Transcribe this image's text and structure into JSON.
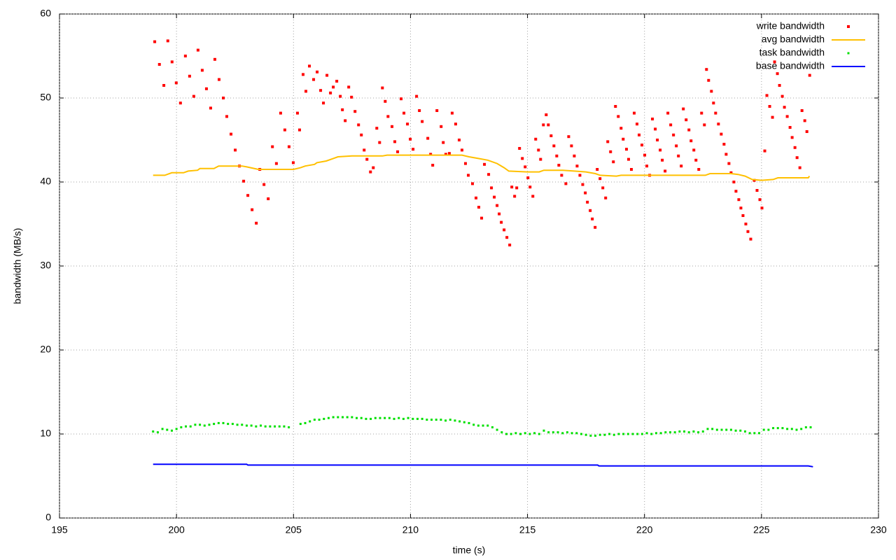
{
  "chart_data": {
    "type": "scatter",
    "xlabel": "time (s)",
    "ylabel": "bandwidth (MB/s)",
    "xlim": [
      195,
      230
    ],
    "xticks": [
      195,
      200,
      205,
      210,
      215,
      220,
      225,
      230
    ],
    "ylim": [
      0,
      60
    ],
    "yticks": [
      0,
      10,
      20,
      30,
      40,
      50,
      60
    ],
    "grid": true,
    "legend": "top-right",
    "series": [
      {
        "name": "write bandwidth",
        "color": "#ff0000",
        "mode": "points",
        "x": [
          199.07,
          199.27,
          199.46,
          199.63,
          199.81,
          199.99,
          200.17,
          200.38,
          200.56,
          200.74,
          200.92,
          201.1,
          201.28,
          201.46,
          201.64,
          201.82,
          202.0,
          202.15,
          202.33,
          202.51,
          202.69,
          202.87,
          203.05,
          203.23,
          203.41,
          203.56,
          203.74,
          203.92,
          204.1,
          204.27,
          204.45,
          204.63,
          204.81,
          204.99,
          205.17,
          205.26,
          205.41,
          205.53,
          205.68,
          205.86,
          206.01,
          206.16,
          206.28,
          206.43,
          206.58,
          206.7,
          206.85,
          207.0,
          207.09,
          207.21,
          207.36,
          207.48,
          207.63,
          207.78,
          207.9,
          208.02,
          208.14,
          208.29,
          208.41,
          208.56,
          208.68,
          208.8,
          208.92,
          209.04,
          209.21,
          209.33,
          209.45,
          209.6,
          209.72,
          209.87,
          209.99,
          210.11,
          210.26,
          210.38,
          210.5,
          210.74,
          210.86,
          210.95,
          211.13,
          211.31,
          211.4,
          211.51,
          211.66,
          211.78,
          211.93,
          212.08,
          212.2,
          212.35,
          212.47,
          212.65,
          212.8,
          212.92,
          213.04,
          213.16,
          213.34,
          213.46,
          213.58,
          213.7,
          213.79,
          213.88,
          214.0,
          214.12,
          214.24,
          214.33,
          214.45,
          214.54,
          214.66,
          214.78,
          214.9,
          215.02,
          215.11,
          215.23,
          215.35,
          215.47,
          215.56,
          215.68,
          215.8,
          215.89,
          216.01,
          216.13,
          216.25,
          216.34,
          216.46,
          216.64,
          216.76,
          216.88,
          217.0,
          217.12,
          217.24,
          217.36,
          217.47,
          217.56,
          217.68,
          217.77,
          217.89,
          217.98,
          218.1,
          218.22,
          218.34,
          218.43,
          218.55,
          218.67,
          218.76,
          218.88,
          219.0,
          219.09,
          219.23,
          219.32,
          219.44,
          219.56,
          219.68,
          219.77,
          219.89,
          220.01,
          220.1,
          220.22,
          220.34,
          220.46,
          220.55,
          220.67,
          220.76,
          220.88,
          221.0,
          221.12,
          221.24,
          221.36,
          221.45,
          221.57,
          221.66,
          221.78,
          221.9,
          221.99,
          222.11,
          222.2,
          222.32,
          222.44,
          222.56,
          222.65,
          222.74,
          222.86,
          222.95,
          223.04,
          223.16,
          223.28,
          223.4,
          223.49,
          223.61,
          223.7,
          223.82,
          223.91,
          224.03,
          224.12,
          224.21,
          224.33,
          224.42,
          224.54,
          224.69,
          224.81,
          224.93,
          225.02,
          225.14,
          225.23,
          225.35,
          225.47,
          225.56,
          225.68,
          225.77,
          225.89,
          225.98,
          226.1,
          226.22,
          226.31,
          226.43,
          226.52,
          226.64,
          226.73,
          226.85,
          226.94,
          227.06
        ],
        "values": [
          56.7,
          54.0,
          51.5,
          56.8,
          54.3,
          51.8,
          49.4,
          55.0,
          52.6,
          50.2,
          55.7,
          53.3,
          51.1,
          48.8,
          54.6,
          52.2,
          50.0,
          47.8,
          45.7,
          43.8,
          41.9,
          40.1,
          38.4,
          36.7,
          35.1,
          41.5,
          39.7,
          38.0,
          44.2,
          42.2,
          48.2,
          46.2,
          44.2,
          42.3,
          48.2,
          46.2,
          52.8,
          50.8,
          53.8,
          52.2,
          53.1,
          50.9,
          49.4,
          52.7,
          50.6,
          51.3,
          52.0,
          50.2,
          48.6,
          47.3,
          51.3,
          50.1,
          48.4,
          46.8,
          45.6,
          43.8,
          42.7,
          41.2,
          41.7,
          46.4,
          44.7,
          51.2,
          49.6,
          47.8,
          46.6,
          44.8,
          43.6,
          49.9,
          48.2,
          46.9,
          45.1,
          43.9,
          50.2,
          48.5,
          47.2,
          45.2,
          43.3,
          42.0,
          48.5,
          46.6,
          44.7,
          43.3,
          43.4,
          48.2,
          46.9,
          45.0,
          43.8,
          42.2,
          40.8,
          39.8,
          38.1,
          37.0,
          35.7,
          42.1,
          40.9,
          39.3,
          38.2,
          37.2,
          36.2,
          35.2,
          34.3,
          33.4,
          32.5,
          39.4,
          38.3,
          39.3,
          44.0,
          42.8,
          41.8,
          40.5,
          39.4,
          38.3,
          45.1,
          43.8,
          42.7,
          46.8,
          48.0,
          46.8,
          45.5,
          44.3,
          43.1,
          42.0,
          40.8,
          39.8,
          45.4,
          44.3,
          43.1,
          41.9,
          40.8,
          39.7,
          38.7,
          37.6,
          36.6,
          35.6,
          34.6,
          41.5,
          40.4,
          39.3,
          38.1,
          44.8,
          43.6,
          42.4,
          49.0,
          47.8,
          46.4,
          45.1,
          43.9,
          42.7,
          41.5,
          48.2,
          46.9,
          45.6,
          44.4,
          43.2,
          41.9,
          40.8,
          47.5,
          46.3,
          45.0,
          43.8,
          42.6,
          41.3,
          48.2,
          46.8,
          45.6,
          44.3,
          43.1,
          41.9,
          48.7,
          47.4,
          46.2,
          44.9,
          43.8,
          42.6,
          41.5,
          48.2,
          46.8,
          53.4,
          52.1,
          50.8,
          49.4,
          48.2,
          46.9,
          45.7,
          44.5,
          43.3,
          42.2,
          41.1,
          40.0,
          38.9,
          37.9,
          36.9,
          36.0,
          35.0,
          34.1,
          33.2,
          40.2,
          39.0,
          37.9,
          36.9,
          43.7,
          50.3,
          49.0,
          47.7,
          54.3,
          52.9,
          51.5,
          50.2,
          48.9,
          47.8,
          46.5,
          45.3,
          44.1,
          42.9,
          41.7,
          48.5,
          47.3,
          46.0,
          52.7
        ]
      },
      {
        "name": "avg bandwidth",
        "color": "#ffc000",
        "mode": "line",
        "x": [
          199.0,
          199.5,
          199.8,
          200.3,
          200.5,
          200.9,
          201.0,
          201.6,
          201.8,
          202.8,
          203.0,
          203.5,
          205.0,
          205.3,
          205.5,
          205.9,
          206.0,
          206.4,
          206.7,
          206.9,
          207.5,
          208.8,
          209.0,
          212.2,
          212.5,
          212.9,
          213.3,
          213.7,
          214.0,
          214.2,
          215.0,
          215.5,
          215.7,
          216.5,
          217.0,
          217.5,
          217.9,
          218.1,
          218.8,
          219.0,
          220.0,
          222.6,
          222.8,
          223.7,
          224.0,
          224.3,
          224.6,
          225.0,
          225.5,
          225.7,
          226.5,
          227.0,
          227.05
        ],
        "values": [
          40.8,
          40.8,
          41.1,
          41.1,
          41.3,
          41.4,
          41.6,
          41.6,
          41.9,
          41.9,
          41.8,
          41.5,
          41.5,
          41.7,
          41.9,
          42.1,
          42.3,
          42.5,
          42.8,
          43.0,
          43.1,
          43.1,
          43.2,
          43.2,
          43.0,
          42.8,
          42.6,
          42.2,
          41.7,
          41.3,
          41.2,
          41.2,
          41.4,
          41.4,
          41.3,
          41.2,
          41.0,
          40.8,
          40.7,
          40.8,
          40.8,
          40.8,
          41.0,
          41.0,
          40.9,
          40.7,
          40.3,
          40.2,
          40.3,
          40.5,
          40.5,
          40.5,
          40.7
        ]
      },
      {
        "name": "task bandwidth",
        "color": "#00e000",
        "mode": "dots",
        "x": [
          199.0,
          199.2,
          199.4,
          199.6,
          199.8,
          200.0,
          200.2,
          200.4,
          200.6,
          200.8,
          201.0,
          201.2,
          201.4,
          201.6,
          201.8,
          202.0,
          202.2,
          202.4,
          202.6,
          202.8,
          203.0,
          203.2,
          203.4,
          203.6,
          203.8,
          204.0,
          204.2,
          204.4,
          204.6,
          204.8,
          205.3,
          205.5,
          205.7,
          205.9,
          206.1,
          206.3,
          206.5,
          206.7,
          206.9,
          207.1,
          207.3,
          207.5,
          207.7,
          207.9,
          208.1,
          208.3,
          208.5,
          208.7,
          208.9,
          209.1,
          209.3,
          209.5,
          209.7,
          209.9,
          210.1,
          210.3,
          210.5,
          210.7,
          210.9,
          211.1,
          211.3,
          211.5,
          211.7,
          211.9,
          212.1,
          212.3,
          212.5,
          212.7,
          212.9,
          213.1,
          213.3,
          213.5,
          213.7,
          213.9,
          214.1,
          214.3,
          214.5,
          214.7,
          214.9,
          215.1,
          215.3,
          215.5,
          215.7,
          215.9,
          216.1,
          216.3,
          216.5,
          216.7,
          216.9,
          217.1,
          217.3,
          217.5,
          217.7,
          217.9,
          218.1,
          218.3,
          218.5,
          218.7,
          218.9,
          219.1,
          219.3,
          219.5,
          219.7,
          219.9,
          220.1,
          220.3,
          220.5,
          220.7,
          220.9,
          221.1,
          221.3,
          221.5,
          221.7,
          221.9,
          222.1,
          222.3,
          222.5,
          222.7,
          222.9,
          223.1,
          223.3,
          223.5,
          223.7,
          223.9,
          224.1,
          224.3,
          224.5,
          224.7,
          224.9,
          225.1,
          225.3,
          225.5,
          225.7,
          225.9,
          226.1,
          226.3,
          226.5,
          226.7,
          226.9,
          227.1
        ],
        "values": [
          10.3,
          10.2,
          10.6,
          10.5,
          10.4,
          10.6,
          10.8,
          10.9,
          10.9,
          11.1,
          11.1,
          11.0,
          11.1,
          11.2,
          11.3,
          11.3,
          11.2,
          11.2,
          11.1,
          11.1,
          11.0,
          11.0,
          10.9,
          11.0,
          10.9,
          10.9,
          10.9,
          10.9,
          10.9,
          10.8,
          11.2,
          11.3,
          11.5,
          11.7,
          11.7,
          11.8,
          11.9,
          12.0,
          12.0,
          12.0,
          12.0,
          12.0,
          11.9,
          11.9,
          11.8,
          11.8,
          11.9,
          11.9,
          11.9,
          11.9,
          11.8,
          11.9,
          11.8,
          11.9,
          11.8,
          11.8,
          11.8,
          11.7,
          11.7,
          11.7,
          11.7,
          11.6,
          11.7,
          11.6,
          11.5,
          11.4,
          11.3,
          11.1,
          11.0,
          11.0,
          11.0,
          10.8,
          10.5,
          10.2,
          10.0,
          10.0,
          10.1,
          10.0,
          10.1,
          10.0,
          10.1,
          10.0,
          10.4,
          10.2,
          10.2,
          10.2,
          10.1,
          10.2,
          10.1,
          10.1,
          10.0,
          9.9,
          9.8,
          9.8,
          9.9,
          9.9,
          10.0,
          9.9,
          10.0,
          10.0,
          10.0,
          10.0,
          10.0,
          10.0,
          10.1,
          10.0,
          10.1,
          10.1,
          10.2,
          10.2,
          10.2,
          10.3,
          10.3,
          10.2,
          10.3,
          10.2,
          10.3,
          10.6,
          10.6,
          10.5,
          10.5,
          10.5,
          10.5,
          10.4,
          10.4,
          10.3,
          10.1,
          10.1,
          10.1,
          10.5,
          10.5,
          10.7,
          10.7,
          10.7,
          10.6,
          10.6,
          10.5,
          10.6,
          10.8,
          10.8
        ]
      },
      {
        "name": "base bandwidth",
        "color": "#0000ff",
        "mode": "line",
        "x": [
          199.0,
          203.0,
          203.05,
          218.0,
          218.05,
          227.0,
          227.2
        ],
        "values": [
          6.4,
          6.4,
          6.3,
          6.3,
          6.2,
          6.2,
          6.1
        ]
      }
    ]
  }
}
